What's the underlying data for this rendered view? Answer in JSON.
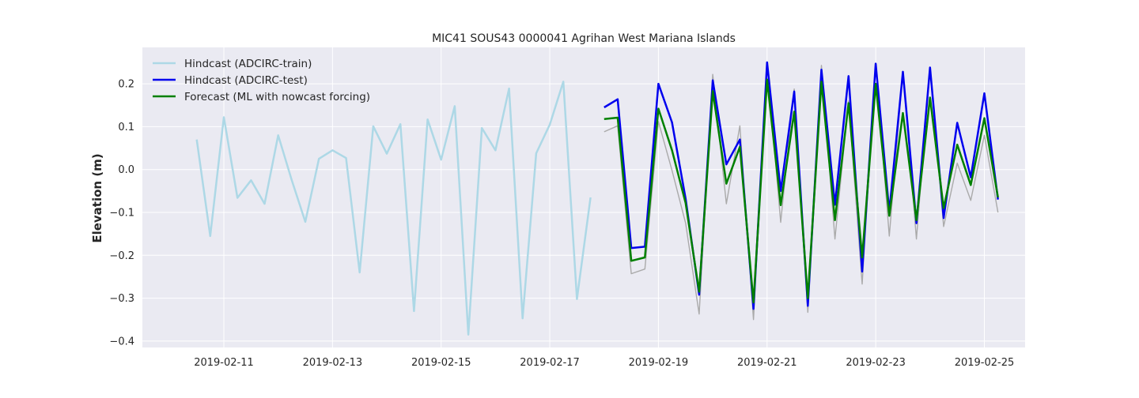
{
  "chart_data": {
    "type": "line",
    "title": "MIC41 SOUS43 0000041 Agrihan West Mariana Islands",
    "xlabel": "",
    "ylabel": "Elevation (m)",
    "x_ticks": [
      "2019-02-11",
      "2019-02-13",
      "2019-02-15",
      "2019-02-17",
      "2019-02-19",
      "2019-02-21",
      "2019-02-23",
      "2019-02-25"
    ],
    "y_ticks": [
      "−0.4",
      "−0.3",
      "−0.2",
      "−0.1",
      "0.0",
      "0.1",
      "0.2"
    ],
    "xlim": [
      "2019-02-09 12:00",
      "2019-02-25 18:00"
    ],
    "ylim": [
      -0.415,
      0.285
    ],
    "grid": true,
    "legend_position": "top-left",
    "series": [
      {
        "name": "Hindcast (ADCIRC-train)",
        "color": "#add8e6",
        "points": [
          [
            "2019-02-10 12:00",
            0.07
          ],
          [
            "2019-02-10 18:00",
            -0.155
          ],
          [
            "2019-02-11 00:00",
            0.122
          ],
          [
            "2019-02-11 06:00",
            -0.066
          ],
          [
            "2019-02-11 12:00",
            -0.025
          ],
          [
            "2019-02-11 18:00",
            -0.08
          ],
          [
            "2019-02-12 00:00",
            0.08
          ],
          [
            "2019-02-12 06:00",
            -0.025
          ],
          [
            "2019-02-12 12:00",
            -0.122
          ],
          [
            "2019-02-12 18:00",
            0.025
          ],
          [
            "2019-02-13 00:00",
            0.045
          ],
          [
            "2019-02-13 06:00",
            0.027
          ],
          [
            "2019-02-13 12:00",
            -0.24
          ],
          [
            "2019-02-13 18:00",
            0.101
          ],
          [
            "2019-02-14 00:00",
            0.037
          ],
          [
            "2019-02-14 06:00",
            0.106
          ],
          [
            "2019-02-14 12:00",
            -0.33
          ],
          [
            "2019-02-14 18:00",
            0.117
          ],
          [
            "2019-02-15 00:00",
            0.023
          ],
          [
            "2019-02-15 06:00",
            0.148
          ],
          [
            "2019-02-15 12:00",
            -0.385
          ],
          [
            "2019-02-15 18:00",
            0.097
          ],
          [
            "2019-02-16 00:00",
            0.045
          ],
          [
            "2019-02-16 06:00",
            0.189
          ],
          [
            "2019-02-16 12:00",
            -0.347
          ],
          [
            "2019-02-16 18:00",
            0.038
          ],
          [
            "2019-02-17 00:00",
            0.105
          ],
          [
            "2019-02-17 06:00",
            0.205
          ],
          [
            "2019-02-17 12:00",
            -0.302
          ],
          [
            "2019-02-17 18:00",
            -0.065
          ]
        ]
      },
      {
        "name": "",
        "color": "#aaaaaa",
        "points": [
          [
            "2019-02-18 00:00",
            0.088
          ],
          [
            "2019-02-18 06:00",
            0.102
          ],
          [
            "2019-02-18 12:00",
            -0.243
          ],
          [
            "2019-02-18 18:00",
            -0.232
          ],
          [
            "2019-02-19 00:00",
            0.112
          ],
          [
            "2019-02-19 06:00",
            -0.002
          ],
          [
            "2019-02-19 12:00",
            -0.125
          ],
          [
            "2019-02-19 18:00",
            -0.337
          ],
          [
            "2019-02-20 00:00",
            0.222
          ],
          [
            "2019-02-20 06:00",
            -0.08
          ],
          [
            "2019-02-20 12:00",
            0.102
          ],
          [
            "2019-02-20 18:00",
            -0.35
          ],
          [
            "2019-02-21 00:00",
            0.247
          ],
          [
            "2019-02-21 06:00",
            -0.123
          ],
          [
            "2019-02-21 12:00",
            0.188
          ],
          [
            "2019-02-21 18:00",
            -0.333
          ],
          [
            "2019-02-22 00:00",
            0.243
          ],
          [
            "2019-02-22 06:00",
            -0.162
          ],
          [
            "2019-02-22 12:00",
            0.16
          ],
          [
            "2019-02-22 18:00",
            -0.267
          ],
          [
            "2019-02-23 00:00",
            0.245
          ],
          [
            "2019-02-23 06:00",
            -0.155
          ],
          [
            "2019-02-23 12:00",
            0.228
          ],
          [
            "2019-02-23 18:00",
            -0.162
          ],
          [
            "2019-02-24 00:00",
            0.235
          ],
          [
            "2019-02-24 06:00",
            -0.133
          ],
          [
            "2019-02-24 12:00",
            0.015
          ],
          [
            "2019-02-24 18:00",
            -0.072
          ],
          [
            "2019-02-25 00:00",
            0.08
          ],
          [
            "2019-02-25 06:00",
            -0.1
          ]
        ]
      },
      {
        "name": "Hindcast (ADCIRC-test)",
        "color": "#0000ee",
        "points": [
          [
            "2019-02-18 00:00",
            0.145
          ],
          [
            "2019-02-18 06:00",
            0.164
          ],
          [
            "2019-02-18 12:00",
            -0.183
          ],
          [
            "2019-02-18 18:00",
            -0.18
          ],
          [
            "2019-02-19 00:00",
            0.2
          ],
          [
            "2019-02-19 06:00",
            0.11
          ],
          [
            "2019-02-19 12:00",
            -0.068
          ],
          [
            "2019-02-19 18:00",
            -0.292
          ],
          [
            "2019-02-20 00:00",
            0.208
          ],
          [
            "2019-02-20 06:00",
            0.012
          ],
          [
            "2019-02-20 12:00",
            0.07
          ],
          [
            "2019-02-20 18:00",
            -0.325
          ],
          [
            "2019-02-21 00:00",
            0.25
          ],
          [
            "2019-02-21 06:00",
            -0.05
          ],
          [
            "2019-02-21 12:00",
            0.182
          ],
          [
            "2019-02-21 18:00",
            -0.318
          ],
          [
            "2019-02-22 00:00",
            0.233
          ],
          [
            "2019-02-22 06:00",
            -0.082
          ],
          [
            "2019-02-22 12:00",
            0.218
          ],
          [
            "2019-02-22 18:00",
            -0.238
          ],
          [
            "2019-02-23 00:00",
            0.247
          ],
          [
            "2019-02-23 06:00",
            -0.098
          ],
          [
            "2019-02-23 12:00",
            0.228
          ],
          [
            "2019-02-23 18:00",
            -0.125
          ],
          [
            "2019-02-24 00:00",
            0.238
          ],
          [
            "2019-02-24 06:00",
            -0.113
          ],
          [
            "2019-02-24 12:00",
            0.109
          ],
          [
            "2019-02-24 18:00",
            -0.018
          ],
          [
            "2019-02-25 00:00",
            0.178
          ],
          [
            "2019-02-25 06:00",
            -0.07
          ]
        ]
      },
      {
        "name": "Forecast (ML with nowcast forcing)",
        "color": "#008000",
        "points": [
          [
            "2019-02-18 00:00",
            0.118
          ],
          [
            "2019-02-18 06:00",
            0.121
          ],
          [
            "2019-02-18 12:00",
            -0.213
          ],
          [
            "2019-02-18 18:00",
            -0.205
          ],
          [
            "2019-02-19 00:00",
            0.142
          ],
          [
            "2019-02-19 06:00",
            0.045
          ],
          [
            "2019-02-19 12:00",
            -0.078
          ],
          [
            "2019-02-19 18:00",
            -0.285
          ],
          [
            "2019-02-20 00:00",
            0.183
          ],
          [
            "2019-02-20 06:00",
            -0.033
          ],
          [
            "2019-02-20 12:00",
            0.053
          ],
          [
            "2019-02-20 18:00",
            -0.31
          ],
          [
            "2019-02-21 00:00",
            0.21
          ],
          [
            "2019-02-21 06:00",
            -0.083
          ],
          [
            "2019-02-21 12:00",
            0.135
          ],
          [
            "2019-02-21 18:00",
            -0.3
          ],
          [
            "2019-02-22 00:00",
            0.205
          ],
          [
            "2019-02-22 06:00",
            -0.118
          ],
          [
            "2019-02-22 12:00",
            0.155
          ],
          [
            "2019-02-22 18:00",
            -0.205
          ],
          [
            "2019-02-23 00:00",
            0.2
          ],
          [
            "2019-02-23 06:00",
            -0.108
          ],
          [
            "2019-02-23 12:00",
            0.132
          ],
          [
            "2019-02-23 18:00",
            -0.118
          ],
          [
            "2019-02-24 00:00",
            0.168
          ],
          [
            "2019-02-24 06:00",
            -0.09
          ],
          [
            "2019-02-24 12:00",
            0.058
          ],
          [
            "2019-02-24 18:00",
            -0.036
          ],
          [
            "2019-02-25 00:00",
            0.12
          ],
          [
            "2019-02-25 06:00",
            -0.065
          ]
        ]
      }
    ]
  }
}
